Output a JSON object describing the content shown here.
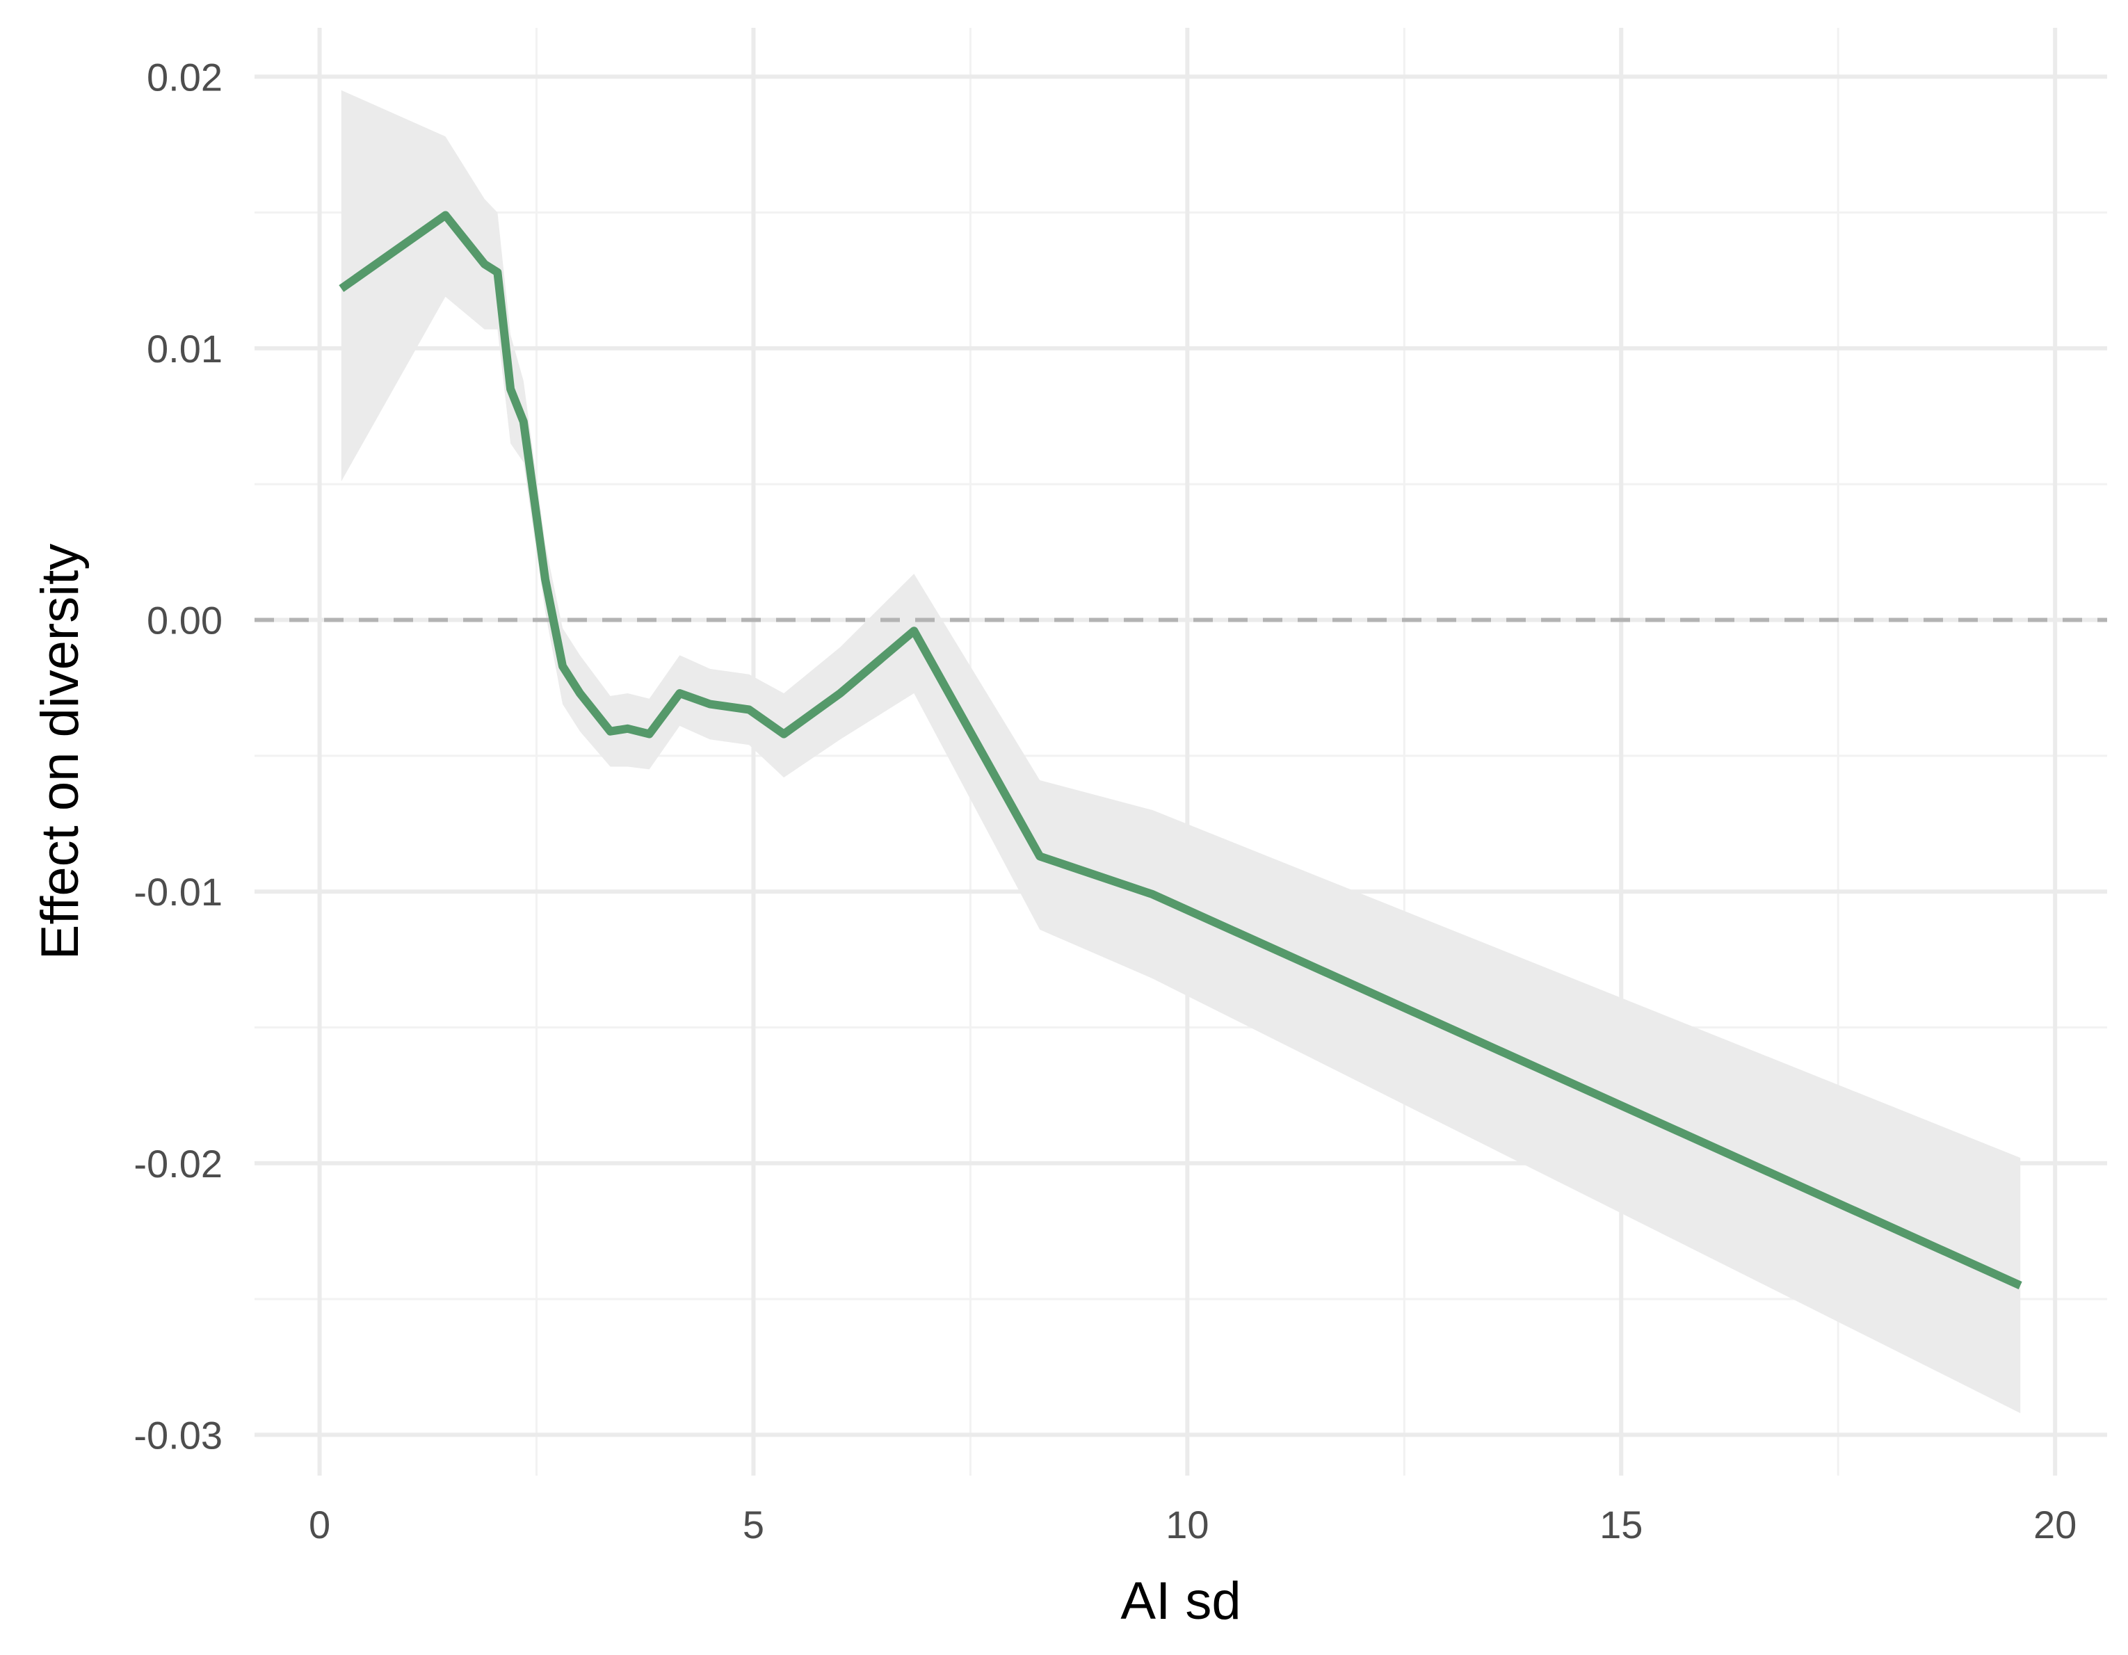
{
  "chart_data": {
    "type": "line",
    "title": "",
    "xlabel": "AI sd",
    "ylabel": "Effect on diversity",
    "xlim": [
      -0.75,
      20.6
    ],
    "ylim": [
      -0.0315,
      0.0218
    ],
    "x_ticks": [
      0,
      5,
      10,
      15,
      20
    ],
    "x_tick_labels": [
      "0",
      "5",
      "10",
      "15",
      "20"
    ],
    "y_ticks": [
      -0.03,
      -0.02,
      -0.01,
      0.0,
      0.01,
      0.02
    ],
    "y_tick_labels": [
      "-0.03",
      "-0.02",
      "-0.01",
      "0.00",
      "0.01",
      "0.02"
    ],
    "grid": true,
    "reference_line": {
      "y": 0.0,
      "style": "dashed"
    },
    "colors": {
      "line": "#55996a",
      "ribbon": "#ebebeb",
      "grid_major": "#ebebeb",
      "grid_minor": "#f2f2f2",
      "reference": "#b3b3b3"
    },
    "series": [
      {
        "x": [
          0.25,
          1.45,
          1.9,
          2.05,
          2.2,
          2.35,
          2.6,
          2.8,
          3.0,
          3.35,
          3.55,
          3.8,
          4.15,
          4.5,
          4.95,
          5.35,
          6.0,
          6.85,
          8.3,
          9.6,
          19.6
        ],
        "y": [
          0.0122,
          0.0149,
          0.0131,
          0.0128,
          0.0085,
          0.0073,
          0.0015,
          -0.0017,
          -0.0027,
          -0.0041,
          -0.004,
          -0.0042,
          -0.0027,
          -0.0031,
          -0.0033,
          -0.0042,
          -0.0027,
          -0.0004,
          -0.0087,
          -0.0101,
          -0.0245
        ],
        "lower": [
          0.0051,
          0.0119,
          0.0107,
          0.0107,
          0.0065,
          0.0058,
          0.0003,
          -0.0031,
          -0.0041,
          -0.0054,
          -0.0054,
          -0.0055,
          -0.0039,
          -0.0044,
          -0.0046,
          -0.0058,
          -0.0044,
          -0.0027,
          -0.0114,
          -0.0132,
          -0.0292
        ],
        "upper": [
          0.0195,
          0.0178,
          0.0155,
          0.015,
          0.0105,
          0.0088,
          0.0028,
          -0.0003,
          -0.0013,
          -0.0028,
          -0.0027,
          -0.0029,
          -0.0013,
          -0.0018,
          -0.002,
          -0.0027,
          -0.001,
          0.0017,
          -0.0059,
          -0.007,
          -0.0198
        ]
      }
    ]
  }
}
